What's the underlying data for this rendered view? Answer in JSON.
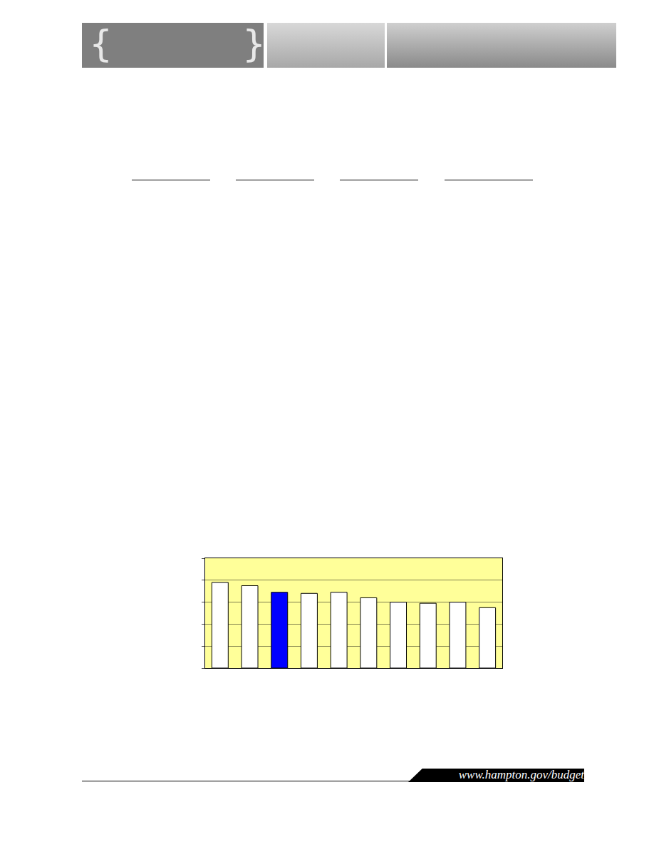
{
  "header": {
    "left_brace": "{",
    "right_brace": "}"
  },
  "chart_data": {
    "type": "bar",
    "categories": [
      null,
      null,
      null,
      null,
      null,
      null,
      null,
      null,
      null,
      null
    ],
    "values": [
      3.9,
      3.75,
      3.45,
      3.4,
      3.45,
      3.2,
      3.0,
      2.95,
      3.0,
      2.75
    ],
    "colors": [
      "#ffffff",
      "#ffffff",
      "#0000ff",
      "#ffffff",
      "#ffffff",
      "#ffffff",
      "#ffffff",
      "#ffffff",
      "#ffffff",
      "#ffffff"
    ],
    "ylim": [
      0,
      5
    ],
    "yticks": [
      0,
      1,
      2,
      3,
      4,
      5
    ],
    "grid": true,
    "tick_labels": false
  },
  "footer": {
    "url": "www.hampton.gov/budget"
  }
}
